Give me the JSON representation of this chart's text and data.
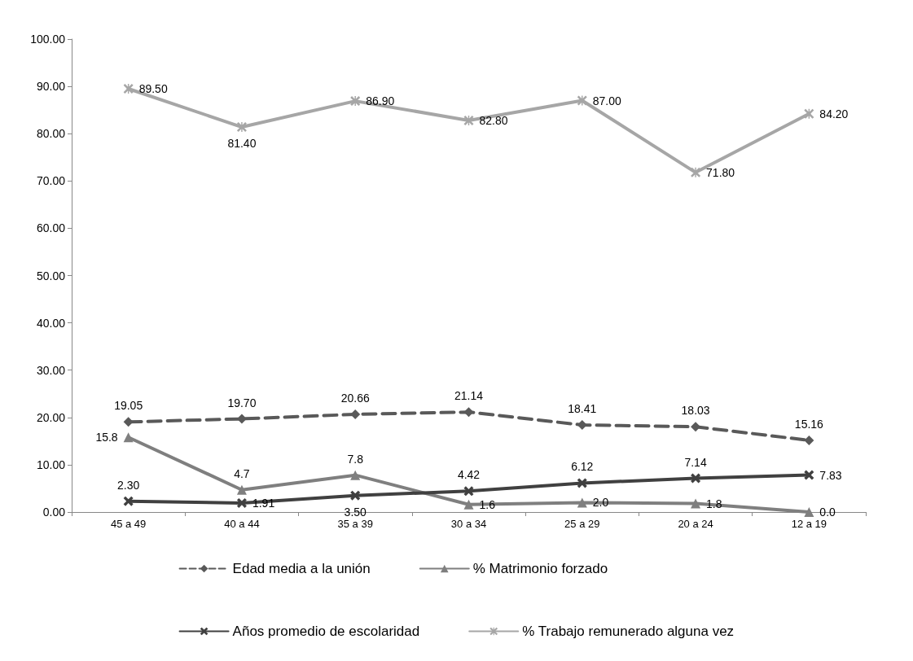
{
  "chart_data": {
    "type": "line",
    "categories": [
      "45 a 49",
      "40 a 44",
      "35 a 39",
      "30 a 34",
      "25 a 29",
      "20 a 24",
      "12 a 19"
    ],
    "series": [
      {
        "name": "Edad media a la unión",
        "color": "#595959",
        "marker": "diamond",
        "line_style": "dashed",
        "values": [
          19.05,
          19.7,
          20.66,
          21.14,
          18.41,
          18.03,
          15.16
        ],
        "value_labels": [
          "19.05",
          "19.70",
          "20.66",
          "21.14",
          "18.41",
          "18.03",
          "15.16"
        ]
      },
      {
        "name": "% Matrimonio forzado",
        "color": "#7f7f7f",
        "marker": "triangle",
        "line_style": "solid",
        "values": [
          15.8,
          4.7,
          7.8,
          1.6,
          2.0,
          1.8,
          0.0
        ],
        "value_labels": [
          "15.8",
          "4.7",
          "7.8",
          "1.6",
          "2.0",
          "1.8",
          "0.0"
        ]
      },
      {
        "name": "Años promedio de escolaridad",
        "color": "#404040",
        "marker": "cross",
        "line_style": "solid",
        "values": [
          2.3,
          1.91,
          3.5,
          4.42,
          6.12,
          7.14,
          7.83
        ],
        "value_labels": [
          "2.30",
          "1.91",
          "3.50",
          "4.42",
          "6.12",
          "7.14",
          "7.83"
        ]
      },
      {
        "name": "% Trabajo remunerado alguna vez",
        "color": "#a6a6a6",
        "marker": "star",
        "line_style": "solid",
        "values": [
          89.5,
          81.4,
          86.9,
          82.8,
          87.0,
          71.8,
          84.2
        ],
        "value_labels": [
          "89.50",
          "81.40",
          "86.90",
          "82.80",
          "87.00",
          "71.80",
          "84.20"
        ]
      }
    ],
    "ylim": [
      0,
      100
    ],
    "yticks": [
      {
        "value": 0,
        "label": "0.00"
      },
      {
        "value": 10,
        "label": "10.00"
      },
      {
        "value": 20,
        "label": "20.00"
      },
      {
        "value": 30,
        "label": "30.00"
      },
      {
        "value": 40,
        "label": "40.00"
      },
      {
        "value": 50,
        "label": "50.00"
      },
      {
        "value": 60,
        "label": "60.00"
      },
      {
        "value": 70,
        "label": "70.00"
      },
      {
        "value": 80,
        "label": "80.00"
      },
      {
        "value": 90,
        "label": "90.00"
      },
      {
        "value": 100,
        "label": "100.00"
      }
    ],
    "grid": false,
    "legend": "bottom"
  }
}
